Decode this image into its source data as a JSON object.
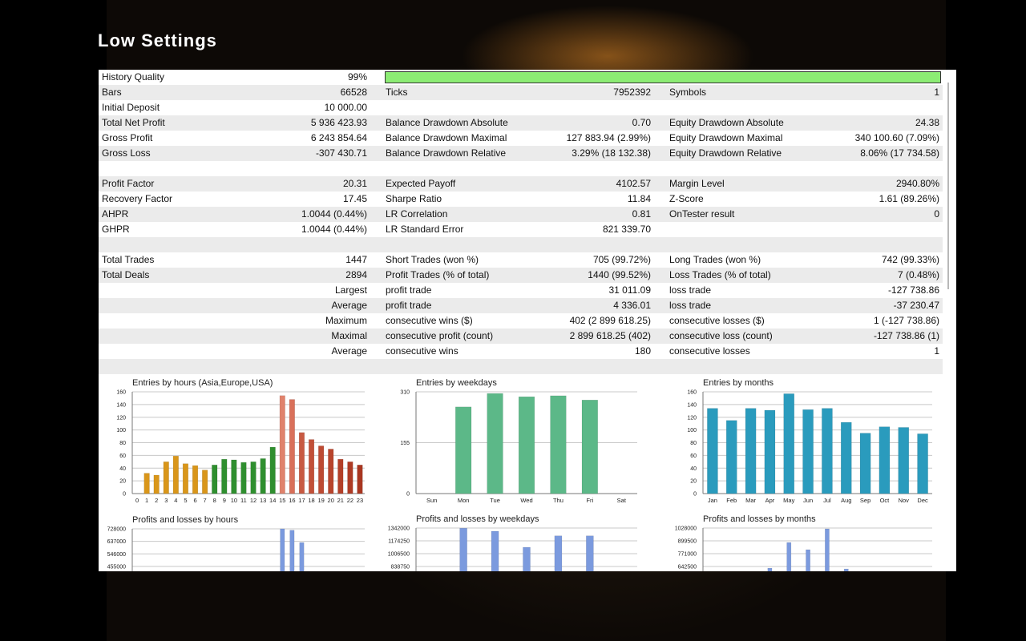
{
  "title": "Low Settings",
  "report": {
    "sections": [
      [
        [
          {
            "label": "History Quality",
            "value": "99%"
          }
        ],
        [
          {
            "label": "Bars",
            "value": "66528"
          },
          {
            "label": "Ticks",
            "value": "7952392"
          },
          {
            "label": "Symbols",
            "value": "1"
          }
        ],
        [
          {
            "label": "Initial Deposit",
            "value": "10 000.00"
          }
        ],
        [
          {
            "label": "Total Net Profit",
            "value": "5 936 423.93"
          },
          {
            "label": "Balance Drawdown Absolute",
            "value": "0.70"
          },
          {
            "label": "Equity Drawdown Absolute",
            "value": "24.38"
          }
        ],
        [
          {
            "label": "Gross Profit",
            "value": "6 243 854.64"
          },
          {
            "label": "Balance Drawdown Maximal",
            "value": "127 883.94 (2.99%)"
          },
          {
            "label": "Equity Drawdown Maximal",
            "value": "340 100.60 (7.09%)"
          }
        ],
        [
          {
            "label": "Gross Loss",
            "value": "-307 430.71"
          },
          {
            "label": "Balance Drawdown Relative",
            "value": "3.29% (18 132.38)"
          },
          {
            "label": "Equity Drawdown Relative",
            "value": "8.06% (17 734.58)"
          }
        ]
      ],
      [
        [
          {
            "label": "Profit Factor",
            "value": "20.31"
          },
          {
            "label": "Expected Payoff",
            "value": "4102.57"
          },
          {
            "label": "Margin Level",
            "value": "2940.80%"
          }
        ],
        [
          {
            "label": "Recovery Factor",
            "value": "17.45"
          },
          {
            "label": "Sharpe Ratio",
            "value": "11.84"
          },
          {
            "label": "Z-Score",
            "value": "1.61 (89.26%)"
          }
        ],
        [
          {
            "label": "AHPR",
            "value": "1.0044 (0.44%)"
          },
          {
            "label": "LR Correlation",
            "value": "0.81"
          },
          {
            "label": "OnTester result",
            "value": "0"
          }
        ],
        [
          {
            "label": "GHPR",
            "value": "1.0044 (0.44%)"
          },
          {
            "label": "LR Standard Error",
            "value": "821 339.70"
          }
        ]
      ],
      [
        [
          {
            "label": "Total Trades",
            "value": "1447"
          },
          {
            "label": "Short Trades (won %)",
            "value": "705 (99.72%)"
          },
          {
            "label": "Long Trades (won %)",
            "value": "742 (99.33%)"
          }
        ],
        [
          {
            "label": "Total Deals",
            "value": "2894"
          },
          {
            "label": "Profit Trades (% of total)",
            "value": "1440 (99.52%)"
          },
          {
            "label": "Loss Trades (% of total)",
            "value": "7 (0.48%)"
          }
        ],
        [
          {
            "value": "Largest"
          },
          {
            "label": "profit trade",
            "value": "31 011.09"
          },
          {
            "label": "loss trade",
            "value": "-127 738.86"
          }
        ],
        [
          {
            "value": "Average"
          },
          {
            "label": "profit trade",
            "value": "4 336.01"
          },
          {
            "label": "loss trade",
            "value": "-37 230.47"
          }
        ],
        [
          {
            "value": "Maximum"
          },
          {
            "label": "consecutive wins ($)",
            "value": "402 (2 899 618.25)"
          },
          {
            "label": "consecutive losses ($)",
            "value": "1 (-127 738.86)"
          }
        ],
        [
          {
            "value": "Maximal"
          },
          {
            "label": "consecutive profit (count)",
            "value": "2 899 618.25 (402)"
          },
          {
            "label": "consecutive loss (count)",
            "value": "-127 738.86 (1)"
          }
        ],
        [
          {
            "value": "Average"
          },
          {
            "label": "consecutive wins",
            "value": "180"
          },
          {
            "label": "consecutive losses",
            "value": "1"
          }
        ]
      ]
    ]
  },
  "chart_data": [
    {
      "type": "bar",
      "title": "Entries by hours (Asia,Europe,USA)",
      "categories": [
        "0",
        "1",
        "2",
        "3",
        "4",
        "5",
        "6",
        "7",
        "8",
        "9",
        "10",
        "11",
        "12",
        "13",
        "14",
        "15",
        "16",
        "17",
        "18",
        "19",
        "20",
        "21",
        "22",
        "23"
      ],
      "values": [
        0,
        32,
        29,
        50,
        59,
        47,
        44,
        37,
        45,
        54,
        53,
        49,
        50,
        55,
        73,
        154,
        148,
        96,
        85,
        75,
        70,
        54,
        50,
        45
      ],
      "colors": [
        "#d9961a",
        "#d9961a",
        "#d9961a",
        "#d9961a",
        "#d9961a",
        "#d9961a",
        "#d9961a",
        "#d9961a",
        "#2f8f2f",
        "#2f8f2f",
        "#2f8f2f",
        "#2f8f2f",
        "#2f8f2f",
        "#2f8f2f",
        "#2f8f2f",
        "#e0826c",
        "#d9705a",
        "#c85a42",
        "#c25038",
        "#bd4a32",
        "#b8442c",
        "#b33f28",
        "#ae3a24",
        "#a93620"
      ],
      "ylim": [
        0,
        160
      ],
      "yticks": [
        0,
        20,
        40,
        60,
        80,
        100,
        120,
        140,
        160
      ],
      "grid": true
    },
    {
      "type": "bar",
      "title": "Entries by weekdays",
      "categories": [
        "Sun",
        "Mon",
        "Tue",
        "Wed",
        "Thu",
        "Fri",
        "Sat"
      ],
      "values": [
        0,
        264,
        305,
        295,
        298,
        285,
        0
      ],
      "color": "#5cb888",
      "ylim": [
        0,
        310
      ],
      "yticks": [
        0,
        155,
        310
      ],
      "grid": true
    },
    {
      "type": "bar",
      "title": "Entries by months",
      "categories": [
        "Jan",
        "Feb",
        "Mar",
        "Apr",
        "May",
        "Jun",
        "Jul",
        "Aug",
        "Sep",
        "Oct",
        "Nov",
        "Dec"
      ],
      "values": [
        134,
        115,
        134,
        131,
        157,
        132,
        134,
        112,
        95,
        105,
        104,
        94
      ],
      "color": "#2a9bbd",
      "ylim": [
        0,
        160
      ],
      "yticks": [
        0,
        20,
        40,
        60,
        80,
        100,
        120,
        140,
        160
      ],
      "grid": true
    },
    {
      "type": "bar",
      "title": "Profits and losses by hours",
      "values": [
        null,
        null,
        null,
        null,
        null,
        null,
        null,
        null,
        null,
        null,
        null,
        null,
        null,
        null,
        null,
        728000,
        718000,
        628000,
        null,
        null,
        null,
        null,
        null,
        null
      ],
      "color": "#7b9ade",
      "ylim": [
        0,
        728000
      ],
      "yticks": [
        728000,
        637000,
        546000,
        455000
      ],
      "grid": true
    },
    {
      "type": "bar",
      "title": "Profits and losses by weekdays",
      "values": [
        null,
        1340000,
        1300000,
        1090000,
        1240000,
        1240000,
        null
      ],
      "color": "#7b9ade",
      "ylim": [
        0,
        1342000
      ],
      "yticks": [
        1342000,
        1174250,
        1006500,
        838750
      ],
      "grid": true
    },
    {
      "type": "bar",
      "title": "Profits and losses by months",
      "values": [
        null,
        null,
        null,
        626000,
        883000,
        811000,
        1020000,
        618000,
        null,
        null,
        null,
        null
      ],
      "color": "#7b9ade",
      "ylim": [
        0,
        1028000
      ],
      "yticks": [
        1028000,
        899500,
        771000,
        642500
      ],
      "grid": true
    }
  ]
}
